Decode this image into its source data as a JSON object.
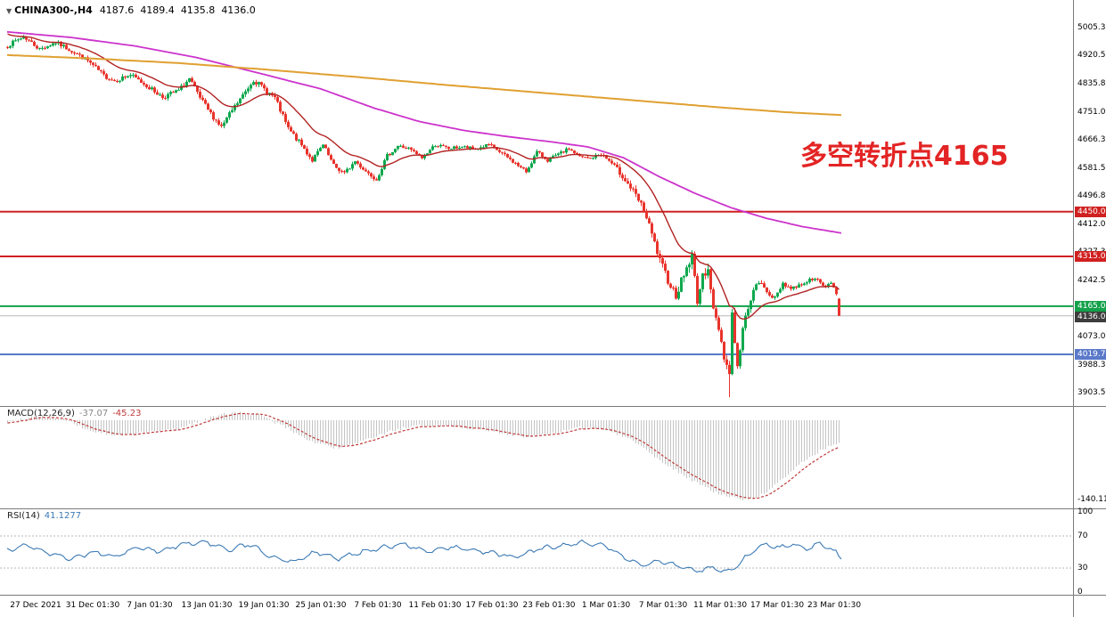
{
  "header": {
    "dropdown_icon": "▼",
    "symbol": "CHINA300-,H4",
    "open": "4187.6",
    "high": "4189.4",
    "low": "4135.8",
    "close": "4136.0"
  },
  "annotation": {
    "text": "多空转折点4165",
    "color": "#e32424"
  },
  "colors": {
    "candle_up": "#0fa84e",
    "candle_down": "#e8342c",
    "ma_fast": "#b22222",
    "ma_mid": "#cc33cc",
    "ma_slow": "#e0a030",
    "divider": "#7a7a7a",
    "current_price_line": "#b8b8b8",
    "current_price_bg": "#3d3d3d"
  },
  "price_axis": {
    "ticks": [
      "5005.3",
      "4920.5",
      "4835.8",
      "4751.0",
      "4666.3",
      "4581.5",
      "4496.8",
      "4412.0",
      "4327.3",
      "4242.5",
      "4157.8",
      "4073.0",
      "3988.3",
      "3903.5"
    ]
  },
  "h_lines": [
    {
      "price": 4450.0,
      "label": "4450.0",
      "color": "#d02020",
      "width": 2
    },
    {
      "price": 4315.0,
      "label": "4315.0",
      "color": "#d02020",
      "width": 2
    },
    {
      "price": 4165.0,
      "label": "4165.0",
      "color": "#13a14a",
      "width": 2
    },
    {
      "price": 4019.7,
      "label": "4019.7",
      "color": "#5b79c9",
      "width": 2
    }
  ],
  "current_price": {
    "price": 4136.0,
    "label": "4136.0"
  },
  "chart_data": {
    "type": "candlestick",
    "symbol": "CHINA300-",
    "timeframe": "H4",
    "title": "CHINA300-,H4 4187.6 4189.4 4135.8 4136.0",
    "visible_price_range": [
      3866,
      5088
    ],
    "time_axis_labels": [
      "27 Dec 2021",
      "31 Dec 01:30",
      "7 Jan 01:30",
      "13 Jan 01:30",
      "19 Jan 01:30",
      "25 Jan 01:30",
      "7 Feb 01:30",
      "11 Feb 01:30",
      "17 Feb 01:30",
      "23 Feb 01:30",
      "1 Mar 01:30",
      "7 Mar 01:30",
      "11 Mar 01:30",
      "17 Mar 01:30",
      "23 Mar 01:30"
    ],
    "horizontal_levels": [
      4450.0,
      4315.0,
      4165.0,
      4019.7
    ],
    "last_price": 4136.0,
    "candles": {
      "count": 312,
      "close_anchors": [
        [
          0,
          4950
        ],
        [
          6,
          4978
        ],
        [
          12,
          4940
        ],
        [
          18,
          4960
        ],
        [
          24,
          4935
        ],
        [
          30,
          4905
        ],
        [
          36,
          4860
        ],
        [
          40,
          4845
        ],
        [
          46,
          4862
        ],
        [
          52,
          4830
        ],
        [
          58,
          4795
        ],
        [
          64,
          4815
        ],
        [
          68,
          4850
        ],
        [
          72,
          4792
        ],
        [
          76,
          4745
        ],
        [
          80,
          4705
        ],
        [
          84,
          4755
        ],
        [
          88,
          4800
        ],
        [
          92,
          4848
        ],
        [
          96,
          4820
        ],
        [
          100,
          4792
        ],
        [
          105,
          4700
        ],
        [
          110,
          4650
        ],
        [
          114,
          4605
        ],
        [
          118,
          4650
        ],
        [
          122,
          4588
        ],
        [
          126,
          4565
        ],
        [
          130,
          4602
        ],
        [
          134,
          4572
        ],
        [
          138,
          4548
        ],
        [
          142,
          4618
        ],
        [
          146,
          4648
        ],
        [
          150,
          4640
        ],
        [
          155,
          4612
        ],
        [
          160,
          4652
        ],
        [
          165,
          4640
        ],
        [
          170,
          4645
        ],
        [
          175,
          4638
        ],
        [
          180,
          4652
        ],
        [
          185,
          4625
        ],
        [
          190,
          4595
        ],
        [
          194,
          4570
        ],
        [
          198,
          4630
        ],
        [
          202,
          4605
        ],
        [
          206,
          4622
        ],
        [
          210,
          4640
        ],
        [
          214,
          4615
        ],
        [
          218,
          4610
        ],
        [
          222,
          4625
        ],
        [
          226,
          4595
        ],
        [
          230,
          4558
        ],
        [
          234,
          4510
        ],
        [
          238,
          4455
        ],
        [
          241,
          4380
        ],
        [
          244,
          4300
        ],
        [
          247,
          4245
        ],
        [
          250,
          4198
        ],
        [
          253,
          4262
        ],
        [
          256,
          4315
        ],
        [
          258,
          4185
        ],
        [
          260,
          4250
        ],
        [
          262,
          4288
        ],
        [
          264,
          4150
        ],
        [
          266,
          4100
        ],
        [
          268,
          4015
        ],
        [
          270,
          3962
        ],
        [
          271,
          4145
        ],
        [
          273,
          3978
        ],
        [
          275,
          4095
        ],
        [
          277,
          4165
        ],
        [
          279,
          4210
        ],
        [
          281,
          4238
        ],
        [
          284,
          4210
        ],
        [
          287,
          4188
        ],
        [
          290,
          4235
        ],
        [
          293,
          4218
        ],
        [
          296,
          4228
        ],
        [
          299,
          4240
        ],
        [
          302,
          4252
        ],
        [
          304,
          4232
        ],
        [
          306,
          4222
        ],
        [
          308,
          4238
        ],
        [
          310,
          4205
        ],
        [
          311,
          4136
        ]
      ],
      "volatility_anchors": [
        [
          0,
          14
        ],
        [
          100,
          17
        ],
        [
          140,
          13
        ],
        [
          220,
          11
        ],
        [
          232,
          22
        ],
        [
          248,
          28
        ],
        [
          258,
          32
        ],
        [
          268,
          30
        ],
        [
          276,
          22
        ],
        [
          286,
          14
        ],
        [
          311,
          9
        ]
      ],
      "spike_low": {
        "index": 270,
        "price": 3890.5
      },
      "last_ohlc": [
        4187.6,
        4189.4,
        4135.8,
        4136.0
      ]
    },
    "moving_averages": [
      {
        "name": "fast-ma",
        "type": "ema",
        "period": 21,
        "color_key": "ma_fast"
      },
      {
        "name": "mid-ma",
        "color_key": "ma_mid",
        "points": [
          [
            8,
            4992
          ],
          [
            80,
            4975
          ],
          [
            150,
            4950
          ],
          [
            220,
            4915
          ],
          [
            290,
            4868
          ],
          [
            360,
            4820
          ],
          [
            420,
            4762
          ],
          [
            470,
            4722
          ],
          [
            520,
            4695
          ],
          [
            570,
            4676
          ],
          [
            620,
            4660
          ],
          [
            660,
            4645
          ],
          [
            700,
            4612
          ],
          [
            740,
            4555
          ],
          [
            780,
            4505
          ],
          [
            820,
            4462
          ],
          [
            860,
            4430
          ],
          [
            900,
            4405
          ],
          [
            945,
            4385
          ]
        ]
      },
      {
        "name": "slow-ma",
        "color_key": "ma_slow",
        "points": [
          [
            8,
            4922
          ],
          [
            100,
            4912
          ],
          [
            200,
            4898
          ],
          [
            300,
            4878
          ],
          [
            400,
            4856
          ],
          [
            500,
            4832
          ],
          [
            600,
            4810
          ],
          [
            700,
            4788
          ],
          [
            800,
            4766
          ],
          [
            880,
            4750
          ],
          [
            945,
            4741
          ]
        ]
      }
    ],
    "macd": {
      "label": "MACD(12,26,9)",
      "macd_value": "-37.07",
      "signal_value": "-45.23",
      "min_label": "-140.11",
      "bar_color": "#c4c4c4",
      "signal_color": "#c03a3a",
      "anchors": [
        [
          8,
          -4
        ],
        [
          40,
          8
        ],
        [
          70,
          2
        ],
        [
          100,
          -18
        ],
        [
          130,
          -28
        ],
        [
          160,
          -22
        ],
        [
          200,
          -15
        ],
        [
          230,
          2
        ],
        [
          260,
          14
        ],
        [
          290,
          10
        ],
        [
          320,
          -12
        ],
        [
          350,
          -38
        ],
        [
          380,
          -50
        ],
        [
          410,
          -36
        ],
        [
          440,
          -18
        ],
        [
          470,
          -10
        ],
        [
          500,
          -9
        ],
        [
          530,
          -14
        ],
        [
          560,
          -22
        ],
        [
          590,
          -30
        ],
        [
          620,
          -24
        ],
        [
          650,
          -13
        ],
        [
          680,
          -16
        ],
        [
          710,
          -35
        ],
        [
          740,
          -70
        ],
        [
          770,
          -100
        ],
        [
          800,
          -126
        ],
        [
          825,
          -138
        ],
        [
          845,
          -140
        ],
        [
          865,
          -122
        ],
        [
          885,
          -95
        ],
        [
          905,
          -68
        ],
        [
          925,
          -50
        ],
        [
          945,
          -37
        ]
      ]
    },
    "rsi": {
      "label": "RSI(14)",
      "value": "41.1277",
      "levels": [
        "100",
        "70",
        "30",
        "0"
      ],
      "color": "#3c7ab5",
      "anchors": [
        [
          8,
          52
        ],
        [
          30,
          58
        ],
        [
          55,
          48
        ],
        [
          80,
          42
        ],
        [
          105,
          50
        ],
        [
          130,
          44
        ],
        [
          155,
          56
        ],
        [
          180,
          50
        ],
        [
          205,
          60
        ],
        [
          230,
          63
        ],
        [
          255,
          52
        ],
        [
          280,
          60
        ],
        [
          305,
          44
        ],
        [
          330,
          38
        ],
        [
          355,
          50
        ],
        [
          380,
          42
        ],
        [
          405,
          50
        ],
        [
          430,
          56
        ],
        [
          455,
          60
        ],
        [
          480,
          50
        ],
        [
          505,
          56
        ],
        [
          530,
          52
        ],
        [
          555,
          48
        ],
        [
          580,
          44
        ],
        [
          605,
          54
        ],
        [
          630,
          58
        ],
        [
          655,
          62
        ],
        [
          680,
          58
        ],
        [
          700,
          44
        ],
        [
          720,
          33
        ],
        [
          740,
          38
        ],
        [
          760,
          33
        ],
        [
          780,
          27
        ],
        [
          800,
          30
        ],
        [
          815,
          24
        ],
        [
          830,
          36
        ],
        [
          845,
          52
        ],
        [
          860,
          60
        ],
        [
          875,
          56
        ],
        [
          890,
          60
        ],
        [
          905,
          55
        ],
        [
          920,
          60
        ],
        [
          935,
          52
        ],
        [
          945,
          41
        ]
      ]
    }
  }
}
